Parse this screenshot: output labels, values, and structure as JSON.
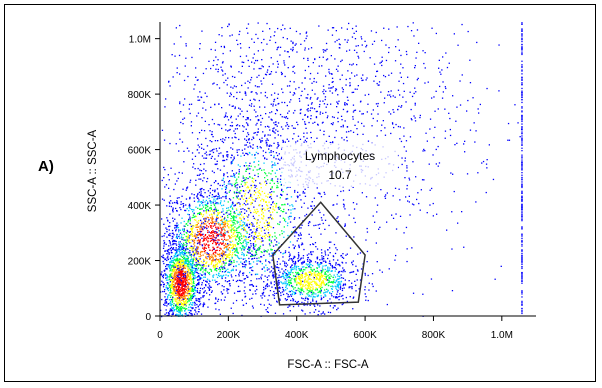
{
  "panel_label": "A)",
  "chart_data": {
    "type": "scatter",
    "subtype": "flow-cytometry-density-dot-plot",
    "xlabel": "FSC-A :: FSC-A",
    "ylabel": "SSC-A :: SSC-A",
    "xlim": [
      0,
      1100000
    ],
    "ylim": [
      0,
      1060000
    ],
    "x_ticks": [
      0,
      200000,
      400000,
      600000,
      800000,
      1000000
    ],
    "x_tick_labels": [
      "0",
      "200K",
      "400K",
      "600K",
      "800K",
      "1.0M"
    ],
    "y_ticks": [
      0,
      200000,
      400000,
      600000,
      800000,
      1000000
    ],
    "y_tick_labels": [
      "0",
      "200K",
      "400K",
      "600K",
      "800K",
      "1.0M"
    ],
    "color_scale": [
      "#0000ff",
      "#00c8ff",
      "#00ff40",
      "#ffff00",
      "#ff8000",
      "#ff0000"
    ],
    "populations": [
      {
        "center": [
          60000,
          120000
        ],
        "spread": [
          30000,
          80000
        ],
        "density": "high"
      },
      {
        "center": [
          150000,
          280000
        ],
        "spread": [
          70000,
          100000
        ],
        "density": "high"
      },
      {
        "center": [
          440000,
          130000
        ],
        "spread": [
          70000,
          50000
        ],
        "density": "medium"
      },
      {
        "center": [
          280000,
          380000
        ],
        "spread": [
          90000,
          180000
        ],
        "density": "medium"
      },
      {
        "center": [
          400000,
          700000
        ],
        "spread": [
          250000,
          250000
        ],
        "density": "low"
      }
    ],
    "gate": {
      "name": "Lymphocytes",
      "value": "10.7",
      "polygon": [
        [
          330000,
          220000
        ],
        [
          470000,
          410000
        ],
        [
          600000,
          220000
        ],
        [
          580000,
          50000
        ],
        [
          350000,
          40000
        ]
      ]
    }
  }
}
